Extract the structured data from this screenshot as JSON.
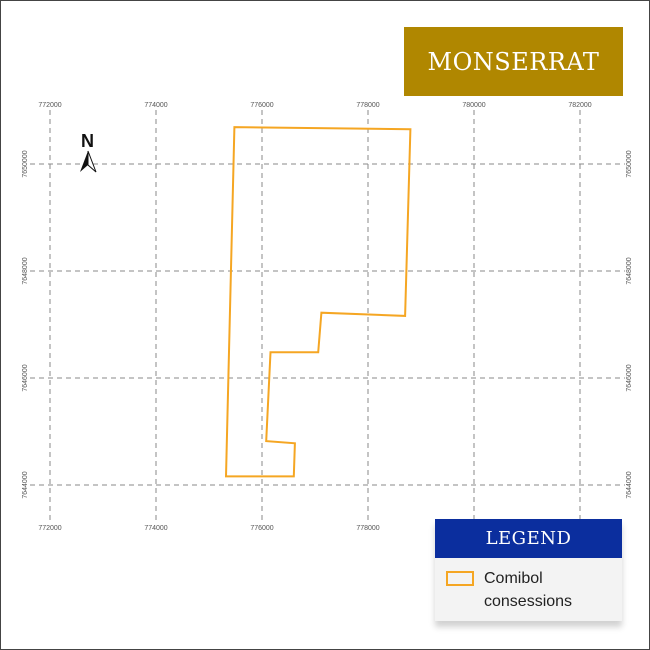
{
  "title": "MONSERRAT",
  "north_label": "N",
  "grid": {
    "x_ticks": [
      "772000",
      "774000",
      "776000",
      "778000",
      "780000",
      "782000"
    ],
    "y_ticks_left": [
      "7650000",
      "7648000",
      "7646000",
      "7644000"
    ],
    "y_ticks_right": [
      "7650000",
      "7648000",
      "7646000",
      "7644000"
    ]
  },
  "colors": {
    "title_bg": "#b08700",
    "legend_header_bg": "#0b2e9e",
    "concession_stroke": "#f5a623",
    "grid": "#8a8a8a"
  },
  "legend": {
    "header": "LEGEND",
    "items": [
      {
        "label": "Comibol consessions",
        "swatch": "outline-orange"
      }
    ]
  },
  "concession": {
    "name": "Comibol consessions",
    "vertices": [
      [
        775480,
        7650690
      ],
      [
        778800,
        7650650
      ],
      [
        778700,
        7647160
      ],
      [
        777120,
        7647220
      ],
      [
        777060,
        7646480
      ],
      [
        776160,
        7646480
      ],
      [
        776080,
        7644820
      ],
      [
        776620,
        7644780
      ],
      [
        776600,
        7644160
      ],
      [
        775320,
        7644160
      ]
    ]
  }
}
